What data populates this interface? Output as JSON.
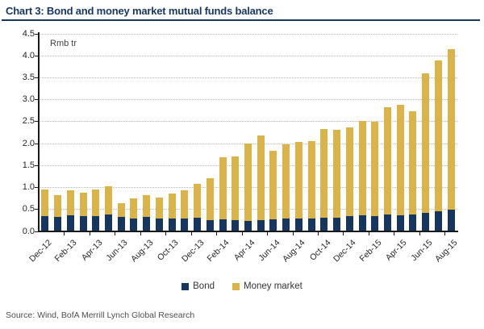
{
  "header": {
    "title": "Chart 3: Bond and money market mutual funds balance"
  },
  "footer": {
    "source": "Source: Wind, BofA Merrill Lynch Global Research"
  },
  "colors": {
    "title": "#17365D",
    "title_rule": "#17365D",
    "bond": "#17365D",
    "money_market": "#D9B34C",
    "axis": "#1a1a1a",
    "gridline": "#b9b9b9"
  },
  "chart_data": {
    "type": "bar",
    "stacked": true,
    "title": "Chart 3: Bond and money market mutual funds balance",
    "unit_label": "Rmb tr",
    "xlabel": "",
    "ylabel": "Rmb tr",
    "ylim": [
      0,
      4.5
    ],
    "y_tick_labels": [
      "0.0",
      "0.5",
      "1.0",
      "1.5",
      "2.0",
      "2.5",
      "3.0",
      "3.5",
      "4.0",
      "4.5"
    ],
    "grid": "horizontal dotted",
    "legend_position": "bottom center",
    "label_every_n_categories": 2,
    "categories": [
      "Dec-12",
      "Jan-13",
      "Feb-13",
      "Mar-13",
      "Apr-13",
      "May-13",
      "Jun-13",
      "Jul-13",
      "Aug-13",
      "Sep-13",
      "Oct-13",
      "Nov-13",
      "Dec-13",
      "Jan-14",
      "Feb-14",
      "Mar-14",
      "Apr-14",
      "May-14",
      "Jun-14",
      "Jul-14",
      "Aug-14",
      "Sep-14",
      "Oct-14",
      "Nov-14",
      "Dec-14",
      "Jan-15",
      "Feb-15",
      "Mar-15",
      "Apr-15",
      "May-15",
      "Jun-15",
      "Jul-15",
      "Aug-15"
    ],
    "series": [
      {
        "name": "Bond",
        "color": "#17365D",
        "values": [
          0.35,
          0.33,
          0.36,
          0.34,
          0.35,
          0.39,
          0.33,
          0.3,
          0.33,
          0.29,
          0.29,
          0.29,
          0.32,
          0.26,
          0.28,
          0.26,
          0.24,
          0.26,
          0.27,
          0.29,
          0.29,
          0.29,
          0.31,
          0.31,
          0.34,
          0.36,
          0.35,
          0.38,
          0.37,
          0.39,
          0.42,
          0.45,
          0.49
        ]
      },
      {
        "name": "Money market",
        "color": "#D9B34C",
        "values": [
          0.6,
          0.5,
          0.57,
          0.55,
          0.6,
          0.63,
          0.32,
          0.45,
          0.5,
          0.48,
          0.58,
          0.64,
          0.77,
          0.96,
          1.41,
          1.45,
          1.77,
          1.92,
          1.57,
          1.69,
          1.75,
          1.76,
          2.02,
          2.01,
          2.03,
          2.15,
          2.15,
          2.45,
          2.51,
          2.34,
          3.18,
          3.45,
          3.66
        ]
      }
    ]
  }
}
